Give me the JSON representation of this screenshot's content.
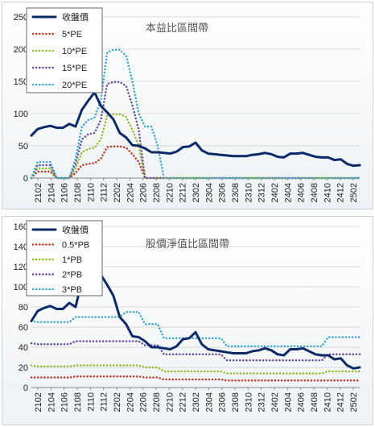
{
  "chart_data": [
    {
      "type": "line",
      "title": "本益比區間帶",
      "xlabel": "",
      "ylabel": "",
      "ylim": [
        0,
        250
      ],
      "yticks": [
        0,
        50,
        100,
        150,
        200,
        250
      ],
      "x_tick_labels": [
        "2102",
        "2104",
        "2106",
        "2108",
        "2110",
        "2112",
        "2202",
        "2204",
        "2206",
        "2208",
        "2210",
        "2212",
        "2302",
        "2304",
        "2306",
        "2308",
        "2310",
        "2312",
        "2402",
        "2404",
        "2406",
        "2408",
        "2410",
        "2412",
        "2502"
      ],
      "legend_placement": "top-left",
      "grid": "horizontal",
      "series": [
        {
          "name": "收盤價",
          "color": "#0b2a66",
          "style": "solid",
          "values": [
            66,
            76,
            79,
            81,
            78,
            78,
            84,
            80,
            106,
            120,
            133,
            112,
            102,
            91,
            70,
            63,
            51,
            50,
            46,
            40,
            40,
            39,
            38,
            41,
            48,
            49,
            55,
            43,
            38,
            37,
            36,
            35,
            34,
            34,
            34,
            36,
            37,
            39,
            37,
            33,
            32,
            38,
            38,
            39,
            36,
            33,
            32,
            32,
            28,
            29,
            22,
            19,
            20
          ]
        },
        {
          "name": "5*PE",
          "color": "#c0392b",
          "style": "dotted",
          "values": [
            0,
            10,
            10,
            10,
            0,
            0,
            0,
            8,
            20,
            22,
            23,
            30,
            48,
            49,
            49,
            47,
            37,
            25,
            0,
            0,
            0,
            0,
            0,
            0,
            0,
            0,
            0,
            0,
            0,
            0,
            0,
            0,
            0,
            0,
            0,
            0,
            0,
            0,
            0,
            0,
            0,
            0,
            0,
            0,
            0,
            0,
            0,
            0,
            0,
            0,
            0,
            0,
            0
          ]
        },
        {
          "name": "10*PE",
          "color": "#8fbc2a",
          "style": "dotted",
          "values": [
            0,
            15,
            15,
            15,
            0,
            0,
            0,
            15,
            40,
            45,
            47,
            60,
            97,
            99,
            99,
            95,
            75,
            50,
            0,
            0,
            0,
            0,
            0,
            0,
            0,
            0,
            0,
            0,
            0,
            0,
            0,
            0,
            0,
            0,
            0,
            0,
            0,
            0,
            0,
            0,
            0,
            0,
            0,
            0,
            0,
            0,
            0,
            0,
            0,
            0,
            0,
            0,
            0
          ]
        },
        {
          "name": "15*PE",
          "color": "#6b4c9a",
          "style": "dotted",
          "values": [
            0,
            20,
            20,
            20,
            0,
            0,
            0,
            22,
            60,
            68,
            70,
            90,
            146,
            149,
            149,
            143,
            113,
            75,
            0,
            0,
            0,
            0,
            0,
            0,
            0,
            0,
            0,
            0,
            0,
            0,
            0,
            0,
            0,
            0,
            0,
            0,
            0,
            0,
            0,
            0,
            0,
            0,
            0,
            0,
            0,
            0,
            0,
            0,
            0,
            0,
            0,
            0,
            0
          ]
        },
        {
          "name": "20*PE",
          "color": "#3fa7c9",
          "style": "dotted",
          "values": [
            0,
            25,
            25,
            25,
            0,
            0,
            0,
            30,
            80,
            90,
            94,
            120,
            195,
            199,
            199,
            190,
            150,
            100,
            80,
            80,
            50,
            0,
            0,
            0,
            0,
            0,
            0,
            0,
            0,
            0,
            0,
            0,
            0,
            0,
            0,
            0,
            0,
            0,
            0,
            0,
            0,
            0,
            0,
            0,
            0,
            0,
            0,
            0,
            0,
            0,
            0,
            0,
            0
          ]
        }
      ]
    },
    {
      "type": "line",
      "title": "股價淨值比區間帶",
      "xlabel": "",
      "ylabel": "",
      "ylim": [
        0,
        160
      ],
      "yticks": [
        0,
        20,
        40,
        60,
        80,
        100,
        120,
        140,
        160
      ],
      "x_tick_labels": [
        "2102",
        "2104",
        "2106",
        "2108",
        "2110",
        "2112",
        "2202",
        "2204",
        "2206",
        "2208",
        "2210",
        "2212",
        "2302",
        "2304",
        "2306",
        "2308",
        "2310",
        "2312",
        "2402",
        "2404",
        "2406",
        "2408",
        "2410",
        "2412",
        "2502"
      ],
      "legend_placement": "top-left",
      "grid": "horizontal",
      "series": [
        {
          "name": "收盤價",
          "color": "#0b2a66",
          "style": "solid",
          "values": [
            66,
            76,
            79,
            81,
            78,
            78,
            84,
            80,
            106,
            120,
            133,
            112,
            102,
            91,
            70,
            63,
            51,
            50,
            46,
            40,
            40,
            39,
            38,
            41,
            48,
            49,
            55,
            43,
            38,
            37,
            36,
            35,
            34,
            34,
            34,
            36,
            37,
            39,
            37,
            33,
            32,
            38,
            38,
            39,
            36,
            33,
            32,
            32,
            28,
            29,
            22,
            19,
            20
          ]
        },
        {
          "name": "0.5*PB",
          "color": "#c0392b",
          "style": "dotted",
          "values": [
            10,
            10,
            10,
            10,
            10,
            10,
            10,
            11,
            11,
            11,
            11,
            11,
            11,
            11,
            11,
            11,
            11,
            11,
            10,
            10,
            10,
            8,
            8,
            8,
            8,
            8,
            8,
            8,
            8,
            8,
            8,
            7,
            7,
            7,
            7,
            7,
            7,
            7,
            7,
            7,
            7,
            7,
            7,
            7,
            7,
            7,
            7,
            7,
            7,
            7,
            7,
            7,
            7
          ]
        },
        {
          "name": "1*PB",
          "color": "#8fbc2a",
          "style": "dotted",
          "values": [
            22,
            21,
            21,
            21,
            21,
            21,
            21,
            22,
            22,
            22,
            22,
            22,
            22,
            22,
            22,
            22,
            22,
            22,
            20,
            20,
            20,
            16,
            16,
            16,
            16,
            16,
            16,
            16,
            16,
            16,
            16,
            14,
            14,
            14,
            14,
            14,
            14,
            14,
            14,
            14,
            14,
            14,
            14,
            14,
            14,
            14,
            14,
            16,
            16,
            16,
            16,
            16,
            16
          ]
        },
        {
          "name": "2*PB",
          "color": "#6b4c9a",
          "style": "dotted",
          "values": [
            44,
            43,
            43,
            43,
            43,
            43,
            43,
            46,
            46,
            46,
            46,
            46,
            46,
            46,
            46,
            46,
            46,
            46,
            42,
            42,
            42,
            33,
            33,
            33,
            33,
            33,
            33,
            33,
            33,
            33,
            33,
            27,
            27,
            27,
            27,
            27,
            27,
            27,
            27,
            27,
            27,
            27,
            27,
            27,
            27,
            27,
            27,
            33,
            33,
            33,
            33,
            33,
            33
          ]
        },
        {
          "name": "3*PB",
          "color": "#3fa7c9",
          "style": "dotted",
          "values": [
            66,
            65,
            65,
            65,
            65,
            65,
            65,
            70,
            70,
            70,
            70,
            70,
            70,
            70,
            70,
            75,
            75,
            75,
            63,
            63,
            63,
            49,
            49,
            49,
            49,
            49,
            49,
            49,
            49,
            49,
            49,
            41,
            41,
            41,
            41,
            41,
            41,
            41,
            41,
            41,
            41,
            41,
            41,
            41,
            41,
            41,
            41,
            50,
            50,
            50,
            50,
            50,
            50
          ]
        }
      ]
    }
  ]
}
